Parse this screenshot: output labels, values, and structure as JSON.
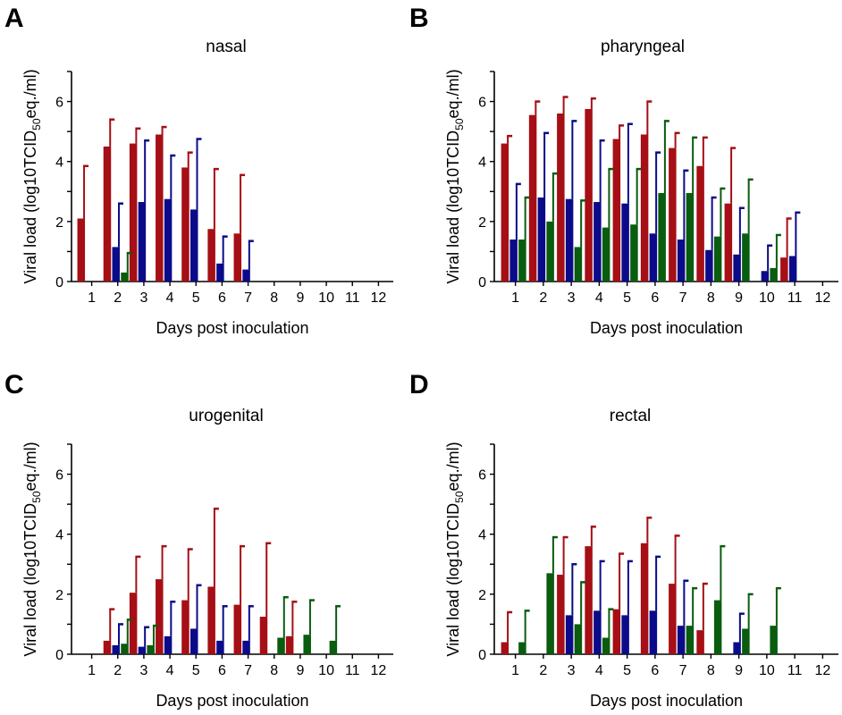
{
  "figure": {
    "colors": {
      "red": "#a50f15",
      "blue": "#0b0b8a",
      "green": "#0a5c0f"
    }
  },
  "chart_data": [
    {
      "panel": "A",
      "type": "bar",
      "title": "nasal",
      "xlabel": "Days post inoculation",
      "ylabel_main": "Viral load (log10TCID",
      "ylabel_sub": "50",
      "ylabel_end": "eq./ml)",
      "categories": [
        "1",
        "2",
        "3",
        "4",
        "5",
        "6",
        "7",
        "8",
        "9",
        "10",
        "11",
        "12"
      ],
      "ylim": [
        0,
        7
      ],
      "yticks": [
        "0",
        "2",
        "4",
        "6"
      ],
      "series": [
        {
          "color": "red",
          "values": [
            2.1,
            4.5,
            4.6,
            4.9,
            3.8,
            1.75,
            1.6,
            null,
            null,
            null,
            null,
            null
          ],
          "errors": [
            3.85,
            5.4,
            5.1,
            5.15,
            4.3,
            3.75,
            3.55,
            null,
            null,
            null,
            null,
            null
          ]
        },
        {
          "color": "blue",
          "values": [
            null,
            1.15,
            2.65,
            2.75,
            2.4,
            0.6,
            0.4,
            null,
            null,
            null,
            null,
            null
          ],
          "errors": [
            null,
            2.6,
            4.7,
            4.2,
            4.75,
            1.5,
            1.35,
            null,
            null,
            null,
            null,
            null
          ]
        },
        {
          "color": "green",
          "values": [
            null,
            0.3,
            null,
            null,
            null,
            null,
            null,
            null,
            null,
            null,
            null,
            null
          ],
          "errors": [
            null,
            0.95,
            null,
            null,
            null,
            null,
            null,
            null,
            null,
            null,
            null,
            null
          ]
        }
      ]
    },
    {
      "panel": "B",
      "type": "bar",
      "title": "pharyngeal",
      "xlabel": "Days post inoculation",
      "ylabel_main": "Viral load (log10TCID",
      "ylabel_sub": "50",
      "ylabel_end": "eq./ml)",
      "categories": [
        "1",
        "2",
        "3",
        "4",
        "5",
        "6",
        "7",
        "8",
        "9",
        "10",
        "11",
        "12"
      ],
      "ylim": [
        0,
        7
      ],
      "yticks": [
        "0",
        "2",
        "4",
        "6"
      ],
      "series": [
        {
          "color": "red",
          "values": [
            4.6,
            5.55,
            5.6,
            5.75,
            4.75,
            4.9,
            4.45,
            3.85,
            2.6,
            null,
            0.8,
            null
          ],
          "errors": [
            4.85,
            6.0,
            6.15,
            6.1,
            5.2,
            6.0,
            4.95,
            4.8,
            4.45,
            null,
            2.1,
            null
          ]
        },
        {
          "color": "blue",
          "values": [
            1.4,
            2.8,
            2.75,
            2.65,
            2.6,
            1.6,
            1.4,
            1.05,
            0.9,
            0.35,
            0.85,
            null
          ],
          "errors": [
            3.25,
            4.95,
            5.35,
            4.7,
            5.25,
            4.3,
            3.7,
            2.8,
            2.45,
            1.2,
            2.3,
            null
          ]
        },
        {
          "color": "green",
          "values": [
            1.4,
            2.0,
            1.15,
            1.8,
            1.9,
            2.95,
            2.95,
            1.5,
            1.6,
            0.45,
            null,
            null
          ],
          "errors": [
            2.8,
            3.6,
            2.7,
            3.75,
            3.75,
            5.35,
            4.8,
            3.1,
            3.4,
            1.55,
            null,
            null
          ]
        }
      ]
    },
    {
      "panel": "C",
      "type": "bar",
      "title": "urogenital",
      "xlabel": "Days post inoculation",
      "ylabel_main": "Viral load (log10TCID",
      "ylabel_sub": "50",
      "ylabel_end": "eq./ml)",
      "categories": [
        "1",
        "2",
        "3",
        "4",
        "5",
        "6",
        "7",
        "8",
        "9",
        "10",
        "11",
        "12"
      ],
      "ylim": [
        0,
        7
      ],
      "yticks": [
        "0",
        "2",
        "4",
        "6"
      ],
      "series": [
        {
          "color": "red",
          "values": [
            null,
            0.45,
            2.05,
            2.5,
            1.8,
            2.25,
            1.65,
            1.25,
            0.6,
            null,
            null,
            null
          ],
          "errors": [
            null,
            1.5,
            3.25,
            3.6,
            3.5,
            4.85,
            3.6,
            3.7,
            1.75,
            null,
            null,
            null
          ]
        },
        {
          "color": "blue",
          "values": [
            null,
            0.3,
            0.25,
            0.6,
            0.85,
            0.45,
            0.45,
            null,
            null,
            null,
            null,
            null
          ],
          "errors": [
            null,
            1.0,
            0.9,
            1.75,
            2.3,
            1.6,
            1.6,
            null,
            null,
            null,
            null,
            null
          ]
        },
        {
          "color": "green",
          "values": [
            null,
            0.35,
            0.3,
            null,
            null,
            null,
            null,
            0.55,
            0.65,
            0.45,
            null,
            null
          ],
          "errors": [
            null,
            1.15,
            0.95,
            null,
            null,
            null,
            null,
            1.9,
            1.8,
            1.6,
            null,
            null
          ]
        }
      ]
    },
    {
      "panel": "D",
      "type": "bar",
      "title": "rectal",
      "xlabel": "Days post inoculation",
      "ylabel_main": "Viral load (log10TCID",
      "ylabel_sub": "50",
      "ylabel_end": "eq./ml)",
      "categories": [
        "1",
        "2",
        "3",
        "4",
        "5",
        "6",
        "7",
        "8",
        "9",
        "10",
        "11",
        "12"
      ],
      "ylim": [
        0,
        7
      ],
      "yticks": [
        "0",
        "2",
        "4",
        "6"
      ],
      "series": [
        {
          "color": "red",
          "values": [
            0.4,
            null,
            2.65,
            3.6,
            1.5,
            3.7,
            2.35,
            0.8,
            null,
            null,
            null,
            null
          ],
          "errors": [
            1.4,
            null,
            3.9,
            4.25,
            3.35,
            4.55,
            3.95,
            2.35,
            null,
            null,
            null,
            null
          ]
        },
        {
          "color": "blue",
          "values": [
            null,
            null,
            1.3,
            1.45,
            1.3,
            1.45,
            0.95,
            null,
            0.4,
            null,
            null,
            null
          ],
          "errors": [
            null,
            null,
            3.0,
            3.1,
            3.1,
            3.25,
            2.45,
            null,
            1.35,
            null,
            null,
            null
          ]
        },
        {
          "color": "green",
          "values": [
            0.4,
            2.7,
            1.0,
            0.55,
            null,
            null,
            0.95,
            1.8,
            0.85,
            0.95,
            null,
            null
          ],
          "errors": [
            1.45,
            3.9,
            2.4,
            1.5,
            null,
            null,
            2.2,
            3.6,
            2.0,
            2.2,
            null,
            null
          ]
        }
      ]
    }
  ]
}
